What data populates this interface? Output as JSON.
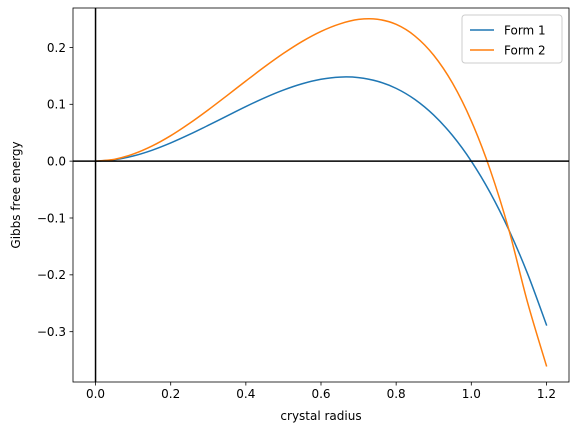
{
  "chart_data": {
    "type": "line",
    "xlabel": "crystal radius",
    "ylabel": "Gibbs free energy",
    "xlim": [
      -0.06,
      1.26
    ],
    "ylim": [
      -0.3885,
      0.2694
    ],
    "xticks": [
      0.0,
      0.2,
      0.4,
      0.6,
      0.8,
      1.0,
      1.2
    ],
    "xtick_labels": [
      "0.0",
      "0.2",
      "0.4",
      "0.6",
      "0.8",
      "1.0",
      "1.2"
    ],
    "yticks": [
      -0.3,
      -0.2,
      -0.1,
      0.0,
      0.1,
      0.2
    ],
    "ytick_labels": [
      "−0.3",
      "−0.2",
      "−0.1",
      "0.0",
      "0.1",
      "0.2"
    ],
    "grid": false,
    "legend_position": "top-right",
    "reference_lines": {
      "x": 0,
      "y": 0,
      "color": "#000000"
    },
    "x": [
      0.0,
      0.05,
      0.1,
      0.15,
      0.2,
      0.25,
      0.3,
      0.35,
      0.4,
      0.45,
      0.5,
      0.55,
      0.6,
      0.65,
      0.7,
      0.75,
      0.8,
      0.85,
      0.9,
      0.95,
      1.0,
      1.05,
      1.1,
      1.15,
      1.2
    ],
    "series": [
      {
        "name": "Form 1",
        "color": "#1f77b4",
        "values": [
          0.0,
          0.0024,
          0.009,
          0.0191,
          0.032,
          0.0469,
          0.063,
          0.0796,
          0.096,
          0.1114,
          0.125,
          0.1361,
          0.144,
          0.1479,
          0.147,
          0.1406,
          0.128,
          0.1084,
          0.081,
          0.0451,
          0.0,
          -0.0551,
          -0.121,
          -0.1984,
          -0.288
        ]
      },
      {
        "name": "Form 2",
        "color": "#ff7f0e",
        "values": [
          0.0,
          0.0032,
          0.0124,
          0.0265,
          0.0448,
          0.0664,
          0.0902,
          0.1154,
          0.141,
          0.166,
          0.1895,
          0.2106,
          0.2282,
          0.2414,
          0.2493,
          0.2496,
          0.2406,
          0.2201,
          0.1863,
          0.1372,
          0.0708,
          -0.0148,
          -0.1208,
          -0.2492,
          -0.36
        ]
      }
    ]
  }
}
